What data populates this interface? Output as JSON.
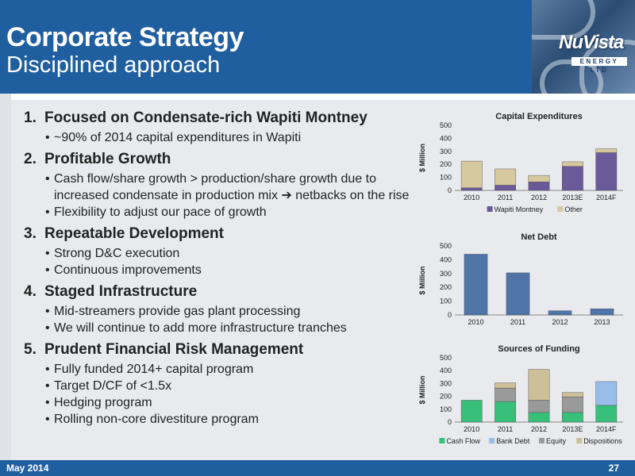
{
  "header": {
    "title": "Corporate Strategy",
    "subtitle": "Disciplined approach"
  },
  "logo": {
    "name": "NuVista",
    "tagline": "ENERGY LTD"
  },
  "strategy": [
    {
      "num": "1.",
      "heading": "Focused on Condensate-rich Wapiti Montney",
      "bullets": [
        "~90% of 2014 capital expenditures in Wapiti"
      ]
    },
    {
      "num": "2.",
      "heading": "Profitable Growth",
      "bullets": [
        "Cash flow/share growth > production/share growth due to increased condensate in production mix ➔ netbacks on the rise",
        "Flexibility to adjust our pace of growth"
      ]
    },
    {
      "num": "3.",
      "heading": "Repeatable Development",
      "bullets": [
        "Strong D&C execution",
        "Continuous improvements"
      ]
    },
    {
      "num": "4.",
      "heading": "Staged Infrastructure",
      "bullets": [
        "Mid-streamers provide gas plant processing",
        "We will continue to add more infrastructure tranches"
      ]
    },
    {
      "num": "5.",
      "heading": "Prudent Financial Risk Management",
      "bullets": [
        "Fully funded 2014+ capital program",
        "Target D/CF of <1.5x",
        "Hedging program",
        "Rolling non-core divestiture program"
      ]
    }
  ],
  "footer": {
    "date": "May 2014",
    "page": "27"
  },
  "colors": {
    "header_bg": "#1f5fa0",
    "wapiti": "#6b5a9a",
    "other": "#d6c9a0",
    "netdebt": "#4f74a8",
    "cashflow": "#38c07a",
    "bankdebt": "#98bde8",
    "equity": "#9a9a9a",
    "dispositions": "#cdbf98"
  },
  "chart_data": [
    {
      "type": "bar",
      "stacked": true,
      "title": "Capital Expenditures",
      "ylabel": "$ Million",
      "ylim": [
        0,
        500
      ],
      "yticks": [
        0,
        100,
        200,
        300,
        400,
        500
      ],
      "categories": [
        "2010",
        "2011",
        "2012",
        "2013E",
        "2014F"
      ],
      "series": [
        {
          "name": "Wapiti Montney",
          "values": [
            20,
            40,
            65,
            185,
            290
          ],
          "color": "#6b5a9a"
        },
        {
          "name": "Other",
          "values": [
            205,
            125,
            50,
            35,
            30
          ],
          "color": "#d6c9a0"
        }
      ],
      "legend": "bottom"
    },
    {
      "type": "bar",
      "stacked": false,
      "title": "Net Debt",
      "ylabel": "$ Million",
      "ylim": [
        0,
        500
      ],
      "yticks": [
        0,
        100,
        200,
        300,
        400,
        500
      ],
      "categories": [
        "2010",
        "2011",
        "2012",
        "2013"
      ],
      "series": [
        {
          "values": [
            440,
            305,
            30,
            45
          ],
          "color": "#4f74a8"
        }
      ]
    },
    {
      "type": "bar",
      "stacked": true,
      "title": "Sources of Funding",
      "ylabel": "$ Million",
      "ylim": [
        0,
        500
      ],
      "yticks": [
        0,
        100,
        200,
        300,
        400,
        500
      ],
      "categories": [
        "2010",
        "2011",
        "2012",
        "2013E",
        "2014F"
      ],
      "series": [
        {
          "name": "Cash Flow",
          "values": [
            170,
            160,
            75,
            75,
            130
          ],
          "color": "#38c07a"
        },
        {
          "name": "Bank Debt",
          "values": [
            0,
            0,
            0,
            0,
            185
          ],
          "color": "#98bde8"
        },
        {
          "name": "Equity",
          "values": [
            0,
            105,
            95,
            120,
            0
          ],
          "color": "#9a9a9a"
        },
        {
          "name": "Dispositions",
          "values": [
            0,
            40,
            240,
            35,
            0
          ],
          "color": "#cdbf98"
        }
      ],
      "legend": "bottom"
    }
  ]
}
